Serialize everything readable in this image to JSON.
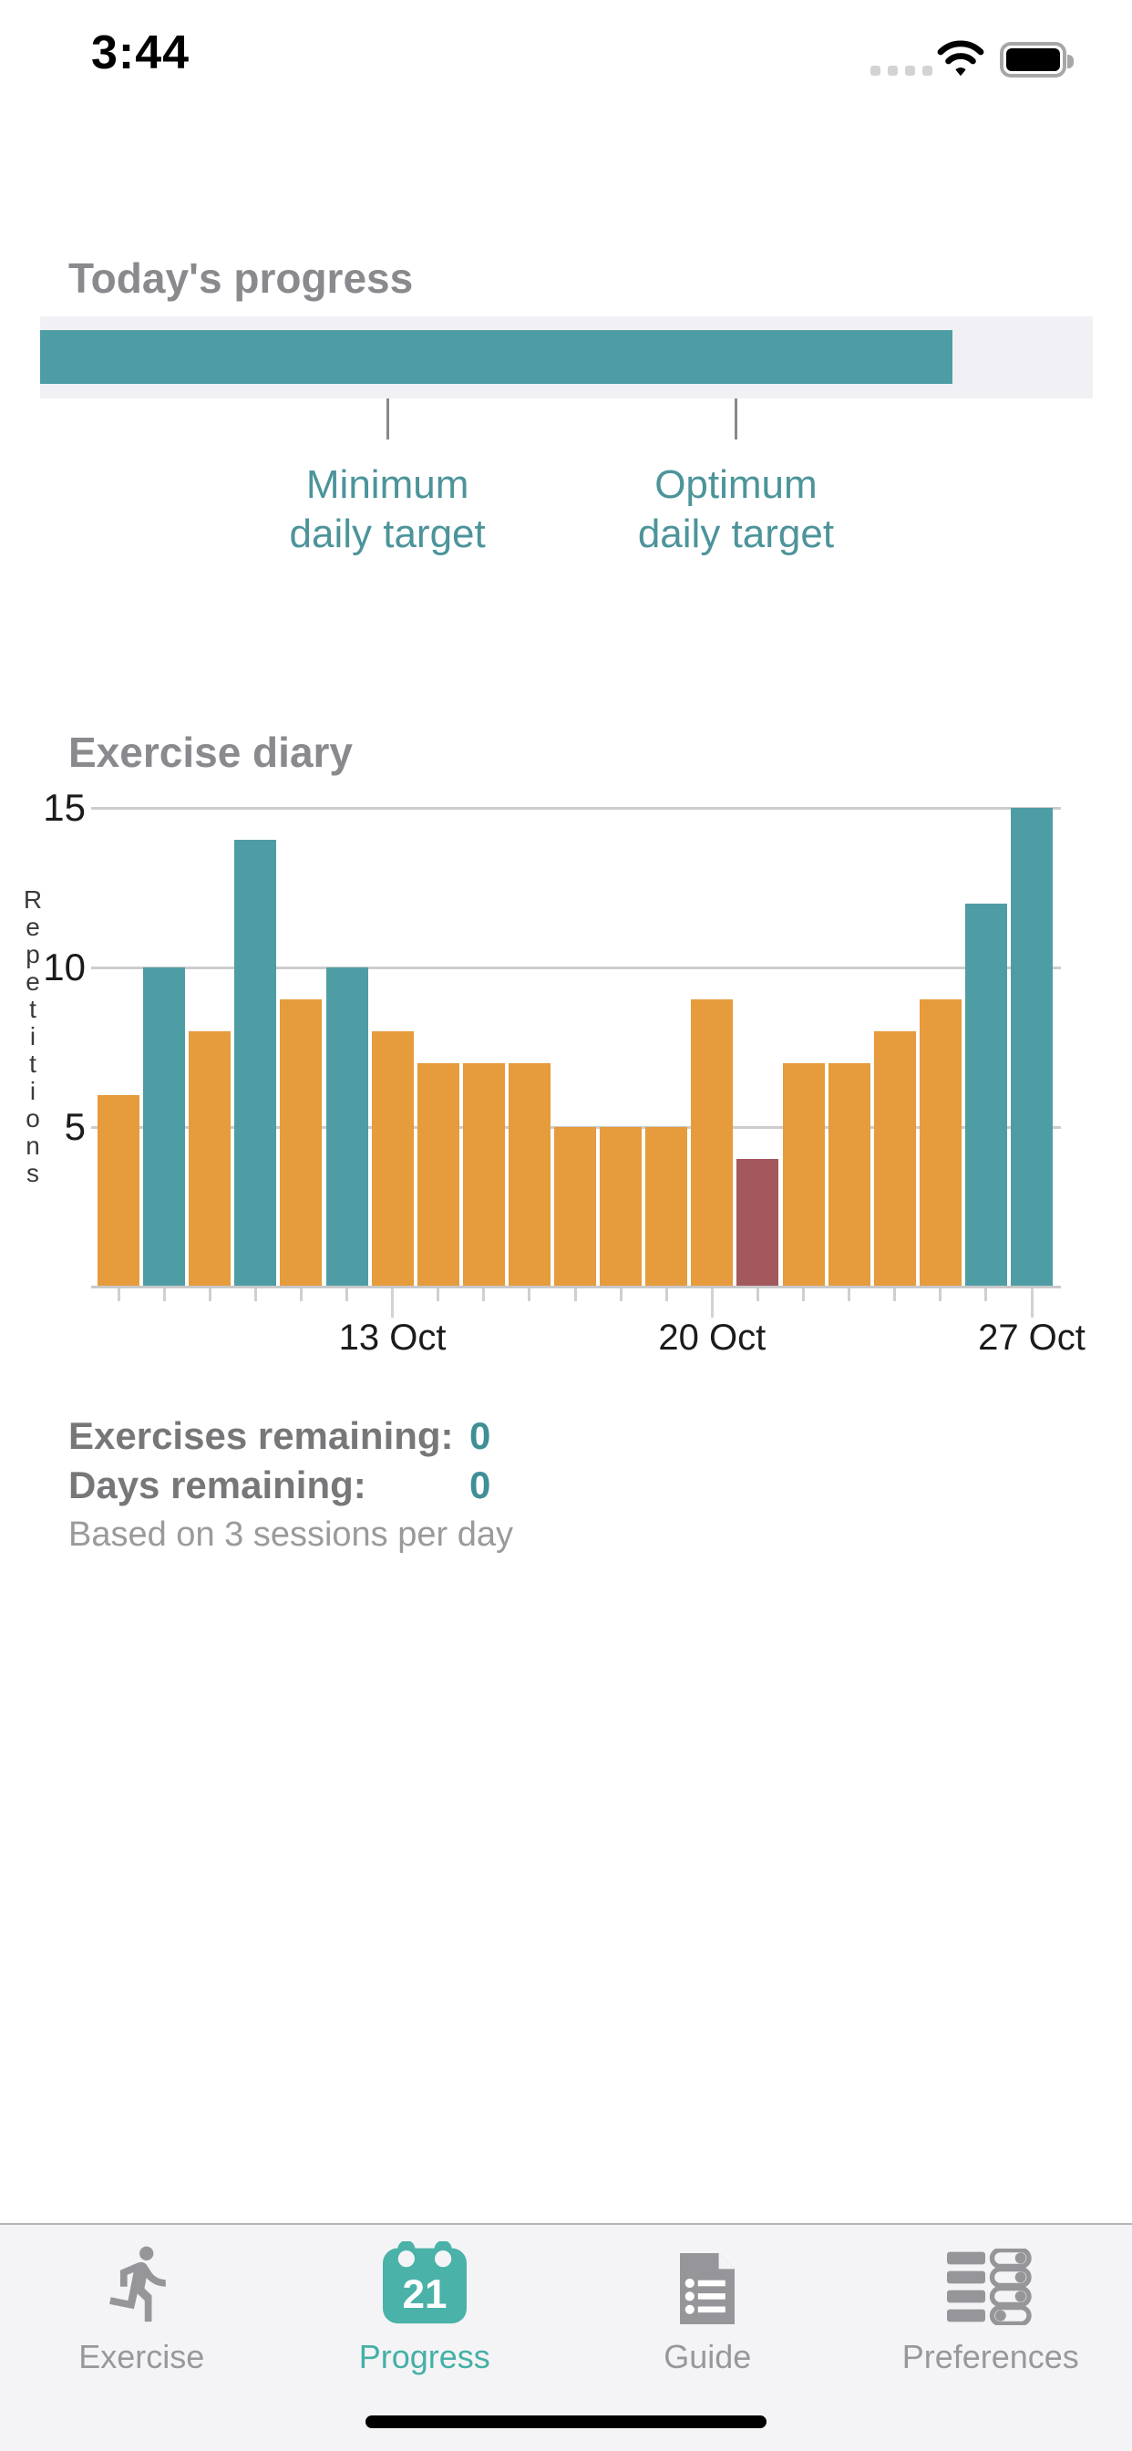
{
  "status": {
    "time": "3:44"
  },
  "colors": {
    "teal": "#4f9da4",
    "orange": "#e69b3c",
    "maroon": "#a2585c",
    "teal_text": "#4c949a",
    "teal_value": "#3f8f96",
    "tab_active": "#45b0a5",
    "calendar_teal": "#4ab2a8",
    "heading_gray": "#8a8a8e",
    "track_bg": "#f1f1f5"
  },
  "progress": {
    "title": "Today's progress",
    "fill_percent": 86.7,
    "targets": [
      {
        "line1": "Minimum",
        "line2": "daily target",
        "x_percent": 33.0
      },
      {
        "line1": "Optimum",
        "line2": "daily target",
        "x_percent": 66.1
      }
    ]
  },
  "chart_data": {
    "type": "bar",
    "title": "Exercise diary",
    "ylabel": "Repetitions",
    "ylim": [
      0,
      15
    ],
    "yticks": [
      15,
      10,
      5
    ],
    "grid": true,
    "categories": [
      "7 Oct",
      "8 Oct",
      "9 Oct",
      "10 Oct",
      "11 Oct",
      "12 Oct",
      "13 Oct",
      "14 Oct",
      "15 Oct",
      "16 Oct",
      "17 Oct",
      "18 Oct",
      "19 Oct",
      "20 Oct",
      "21 Oct",
      "22 Oct",
      "23 Oct",
      "24 Oct",
      "25 Oct",
      "26 Oct",
      "27 Oct"
    ],
    "values": [
      6,
      10,
      8,
      14,
      9,
      10,
      8,
      7,
      7,
      7,
      5,
      5,
      5,
      9,
      4,
      7,
      7,
      8,
      9,
      12,
      15
    ],
    "bar_colors": [
      "orange",
      "teal",
      "orange",
      "teal",
      "orange",
      "teal",
      "orange",
      "orange",
      "orange",
      "orange",
      "orange",
      "orange",
      "orange",
      "orange",
      "maroon",
      "orange",
      "orange",
      "orange",
      "orange",
      "teal",
      "teal"
    ],
    "x_tick_labels": [
      {
        "index": 6,
        "label": "13 Oct"
      },
      {
        "index": 13,
        "label": "20 Oct"
      },
      {
        "index": 20,
        "label": "27 Oct"
      }
    ]
  },
  "stats": {
    "rows": [
      {
        "label": "Exercises remaining:",
        "value": "0"
      },
      {
        "label": "Days remaining:",
        "value": "0"
      }
    ],
    "note": "Based on 3 sessions per day"
  },
  "tabbar": {
    "items": [
      {
        "label": "Exercise"
      },
      {
        "label": "Progress",
        "badge": "21"
      },
      {
        "label": "Guide"
      },
      {
        "label": "Preferences"
      }
    ]
  }
}
